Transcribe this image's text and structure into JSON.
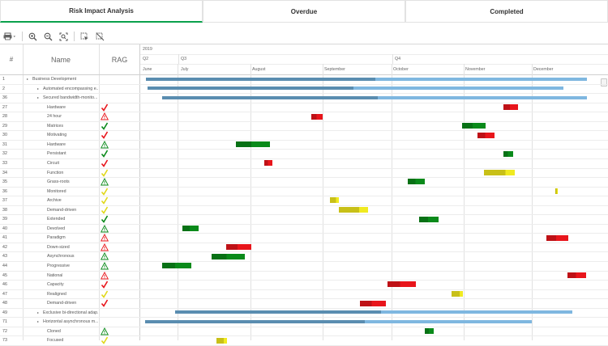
{
  "tabs": [
    {
      "label": "Risk Impact Analysis",
      "active": true
    },
    {
      "label": "Overdue",
      "active": false
    },
    {
      "label": "Completed",
      "active": false
    }
  ],
  "toolbar": {
    "icons": [
      "print-icon",
      "zoom-in-icon",
      "zoom-out-icon",
      "zoom-fit-icon",
      "select-icon",
      "clear-selection-icon"
    ]
  },
  "columns": {
    "num": "#",
    "name": "Name",
    "rag": "RAG"
  },
  "timeline": {
    "year": "2019",
    "quarters": [
      {
        "label": "Q2"
      },
      {
        "label": "Q3"
      },
      {
        "label": "Q4"
      }
    ],
    "months": [
      {
        "label": "June"
      },
      {
        "label": "July"
      },
      {
        "label": "August"
      },
      {
        "label": "September"
      },
      {
        "label": "October"
      },
      {
        "label": "November"
      },
      {
        "label": "December"
      }
    ]
  },
  "rows": [
    {
      "num": "1",
      "name": "Business Development",
      "level": 0,
      "expand": true,
      "rag": "none",
      "bars": [
        {
          "s": 0.012,
          "e": 0.502,
          "c": "#5a8db0"
        },
        {
          "s": 0.502,
          "e": 0.955,
          "c": "#7fb7e0"
        }
      ]
    },
    {
      "num": "2",
      "name": "Automated encompassing e...",
      "level": 1,
      "expand": true,
      "rag": "none",
      "bars": [
        {
          "s": 0.015,
          "e": 0.455,
          "c": "#5a8db0"
        },
        {
          "s": 0.455,
          "e": 0.904,
          "c": "#7fb7e0"
        }
      ]
    },
    {
      "num": "36",
      "name": "Secured bandwidth-monito...",
      "level": 1,
      "expand": true,
      "rag": "none",
      "bars": [
        {
          "s": 0.047,
          "e": 0.507,
          "c": "#5a8db0"
        },
        {
          "s": 0.507,
          "e": 0.955,
          "c": "#7fb7e0"
        }
      ]
    },
    {
      "num": "27",
      "name": "Hardware",
      "level": 2,
      "rag": "check-red",
      "bars": [
        {
          "s": 0.776,
          "e": 0.808,
          "c": "#e8151b"
        }
      ]
    },
    {
      "num": "28",
      "name": "24 hour",
      "level": 2,
      "rag": "warn-red",
      "bars": [
        {
          "s": 0.366,
          "e": 0.39,
          "c": "#e8151b"
        }
      ]
    },
    {
      "num": "29",
      "name": "Matrices",
      "level": 2,
      "rag": "check-green",
      "bars": [
        {
          "s": 0.688,
          "e": 0.738,
          "c": "#0a8a1a"
        }
      ]
    },
    {
      "num": "30",
      "name": "Motivating",
      "level": 2,
      "rag": "check-red",
      "bars": [
        {
          "s": 0.721,
          "e": 0.757,
          "c": "#e8151b"
        }
      ]
    },
    {
      "num": "31",
      "name": "Hardware",
      "level": 2,
      "rag": "warn-green",
      "bars": [
        {
          "s": 0.204,
          "e": 0.277,
          "c": "#0a8a1a"
        }
      ]
    },
    {
      "num": "32",
      "name": "Persistant",
      "level": 2,
      "rag": "check-green",
      "bars": [
        {
          "s": 0.777,
          "e": 0.797,
          "c": "#0a8a1a"
        }
      ]
    },
    {
      "num": "33",
      "name": "Circuit",
      "level": 2,
      "rag": "check-red",
      "bars": [
        {
          "s": 0.266,
          "e": 0.282,
          "c": "#e8151b"
        }
      ]
    },
    {
      "num": "34",
      "name": "Function",
      "level": 2,
      "rag": "check-yellow",
      "bars": [
        {
          "s": 0.734,
          "e": 0.8,
          "c": "#c8c018"
        }
      ]
    },
    {
      "num": "35",
      "name": "Grass-roots",
      "level": 2,
      "rag": "warn-green",
      "bars": [
        {
          "s": 0.572,
          "e": 0.608,
          "c": "#0a8a1a"
        }
      ]
    },
    {
      "num": "36",
      "name": "Monitored",
      "level": 2,
      "rag": "check-yellow",
      "bars": [
        {
          "s": 0.888,
          "e": 0.893,
          "c": "#e8e010"
        }
      ]
    },
    {
      "num": "37",
      "name": "Archive",
      "level": 2,
      "rag": "check-yellow",
      "bars": [
        {
          "s": 0.405,
          "e": 0.425,
          "c": "#c8c018"
        }
      ]
    },
    {
      "num": "38",
      "name": "Demand-driven",
      "level": 2,
      "rag": "check-yellow",
      "bars": [
        {
          "s": 0.424,
          "e": 0.487,
          "c": "#c8c018"
        }
      ]
    },
    {
      "num": "39",
      "name": "Extended",
      "level": 2,
      "rag": "check-green",
      "bars": [
        {
          "s": 0.597,
          "e": 0.638,
          "c": "#0a8a1a"
        }
      ]
    },
    {
      "num": "40",
      "name": "Devolved",
      "level": 2,
      "rag": "warn-green",
      "bars": [
        {
          "s": 0.09,
          "e": 0.125,
          "c": "#0a8a1a"
        }
      ]
    },
    {
      "num": "41",
      "name": "Paradigm",
      "level": 2,
      "rag": "warn-red",
      "bars": [
        {
          "s": 0.868,
          "e": 0.915,
          "c": "#e8151b"
        }
      ]
    },
    {
      "num": "42",
      "name": "Down-sized",
      "level": 2,
      "rag": "warn-red",
      "bars": [
        {
          "s": 0.183,
          "e": 0.237,
          "c": "#e8151b"
        }
      ]
    },
    {
      "num": "43",
      "name": "Asynchronous",
      "level": 2,
      "rag": "warn-green",
      "bars": [
        {
          "s": 0.153,
          "e": 0.223,
          "c": "#0a8a1a"
        }
      ]
    },
    {
      "num": "44",
      "name": "Progressive",
      "level": 2,
      "rag": "warn-green",
      "bars": [
        {
          "s": 0.046,
          "e": 0.11,
          "c": "#0a8a1a"
        }
      ]
    },
    {
      "num": "45",
      "name": "National",
      "level": 2,
      "rag": "warn-red",
      "bars": [
        {
          "s": 0.914,
          "e": 0.954,
          "c": "#e8151b"
        }
      ]
    },
    {
      "num": "46",
      "name": "Capacity",
      "level": 2,
      "rag": "check-red",
      "bars": [
        {
          "s": 0.529,
          "e": 0.589,
          "c": "#e8151b"
        }
      ]
    },
    {
      "num": "47",
      "name": "Realigned",
      "level": 2,
      "rag": "check-yellow",
      "bars": [
        {
          "s": 0.666,
          "e": 0.69,
          "c": "#c8c018"
        }
      ]
    },
    {
      "num": "48",
      "name": "Demand-driven",
      "level": 2,
      "rag": "check-red",
      "bars": [
        {
          "s": 0.469,
          "e": 0.525,
          "c": "#e8151b"
        }
      ]
    },
    {
      "num": "49",
      "name": "Exclusive bi-directional adap...",
      "level": 1,
      "expand": true,
      "rag": "none",
      "bars": [
        {
          "s": 0.075,
          "e": 0.515,
          "c": "#5a8db0"
        },
        {
          "s": 0.515,
          "e": 0.923,
          "c": "#7fb7e0"
        }
      ]
    },
    {
      "num": "71",
      "name": "Horizontal asynchronous m...",
      "level": 1,
      "expand": true,
      "rag": "none",
      "bars": [
        {
          "s": 0.01,
          "e": 0.48,
          "c": "#5a8db0"
        },
        {
          "s": 0.48,
          "e": 0.837,
          "c": "#7fb7e0"
        }
      ]
    },
    {
      "num": "72",
      "name": "Cloned",
      "level": 2,
      "rag": "warn-green",
      "bars": [
        {
          "s": 0.609,
          "e": 0.628,
          "c": "#0a8a1a"
        }
      ]
    },
    {
      "num": "73",
      "name": "Focused",
      "level": 2,
      "rag": "check-yellow",
      "bars": [
        {
          "s": 0.163,
          "e": 0.185,
          "c": "#c8c018"
        }
      ]
    }
  ],
  "colors": {
    "accent_tab": "#0aa14b",
    "parent_dark": "#5a8db0",
    "parent_light": "#7fb7e0",
    "red": "#e8151b",
    "green": "#0a8a1a",
    "yellow": "#c8c018"
  }
}
